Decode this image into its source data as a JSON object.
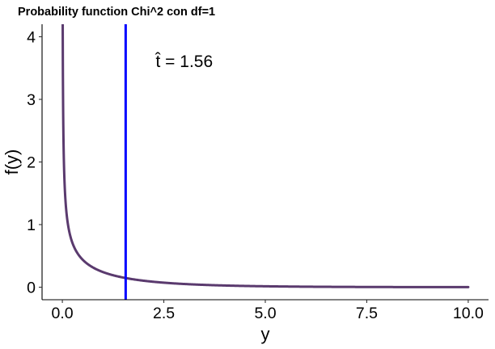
{
  "chart_data": {
    "type": "line",
    "title": "Probability function Chi^2 con df=1",
    "xlabel": "y",
    "ylabel": "f(y)",
    "xlim": [
      -0.5,
      10.5
    ],
    "ylim": [
      -0.2,
      4.2
    ],
    "x_ticks": [
      0,
      2.5,
      5,
      7.5,
      10
    ],
    "x_tick_labels": [
      "0.0",
      "2.5",
      "5.0",
      "7.5",
      "10.0"
    ],
    "y_ticks": [
      0,
      1,
      2,
      3,
      4
    ],
    "y_tick_labels": [
      "0",
      "1",
      "2",
      "3",
      "4"
    ],
    "grid": false,
    "series": [
      {
        "function": "chi-squared density, df = 1",
        "df": 1,
        "x_range": [
          0,
          10
        ],
        "color": "#5a3a6e"
      }
    ],
    "vline": {
      "x": 1.56,
      "color": "#0000ff"
    },
    "annotation": {
      "text": "t̂ = 1.56",
      "x": 2.3,
      "y": 3.62
    }
  }
}
